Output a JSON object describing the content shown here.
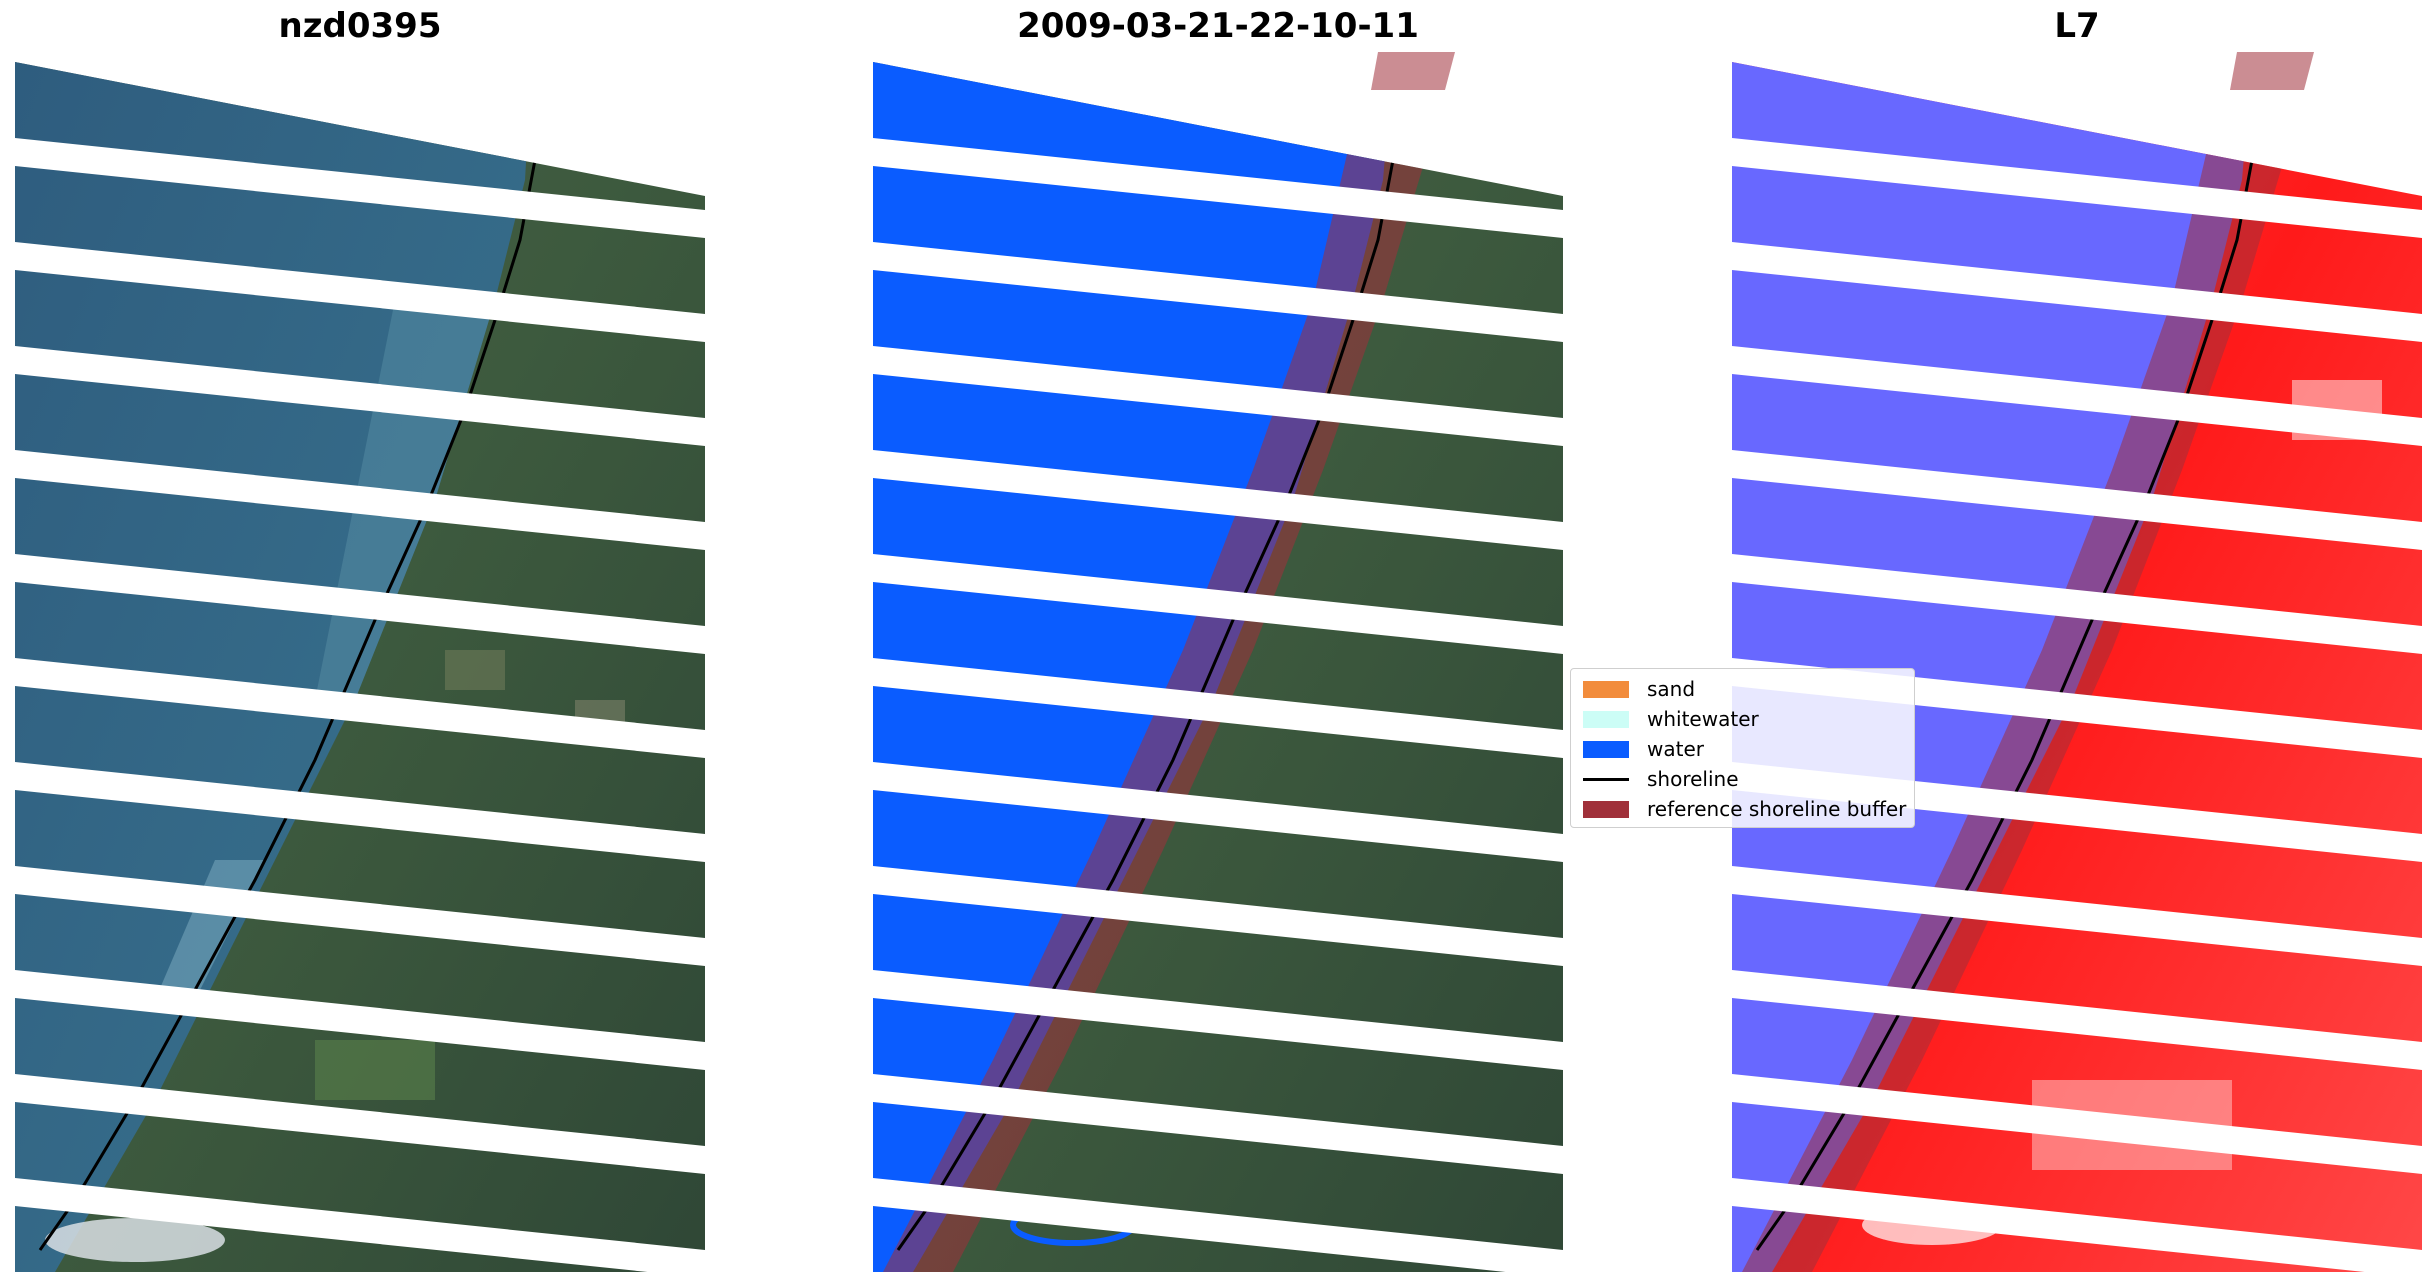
{
  "panels": [
    {
      "title": "nzd0395"
    },
    {
      "title": "2009-03-21-22-10-11"
    },
    {
      "title": "L7"
    }
  ],
  "legend": {
    "items": [
      {
        "label": "sand",
        "color": "#f28c3c"
      },
      {
        "label": "whitewater",
        "color": "#ccfdf6"
      },
      {
        "label": "water",
        "color": "#0a5cff"
      },
      {
        "label": "shoreline",
        "color": "#000000"
      },
      {
        "label": "reference shoreline buffer",
        "color": "#a0303a"
      }
    ]
  }
}
